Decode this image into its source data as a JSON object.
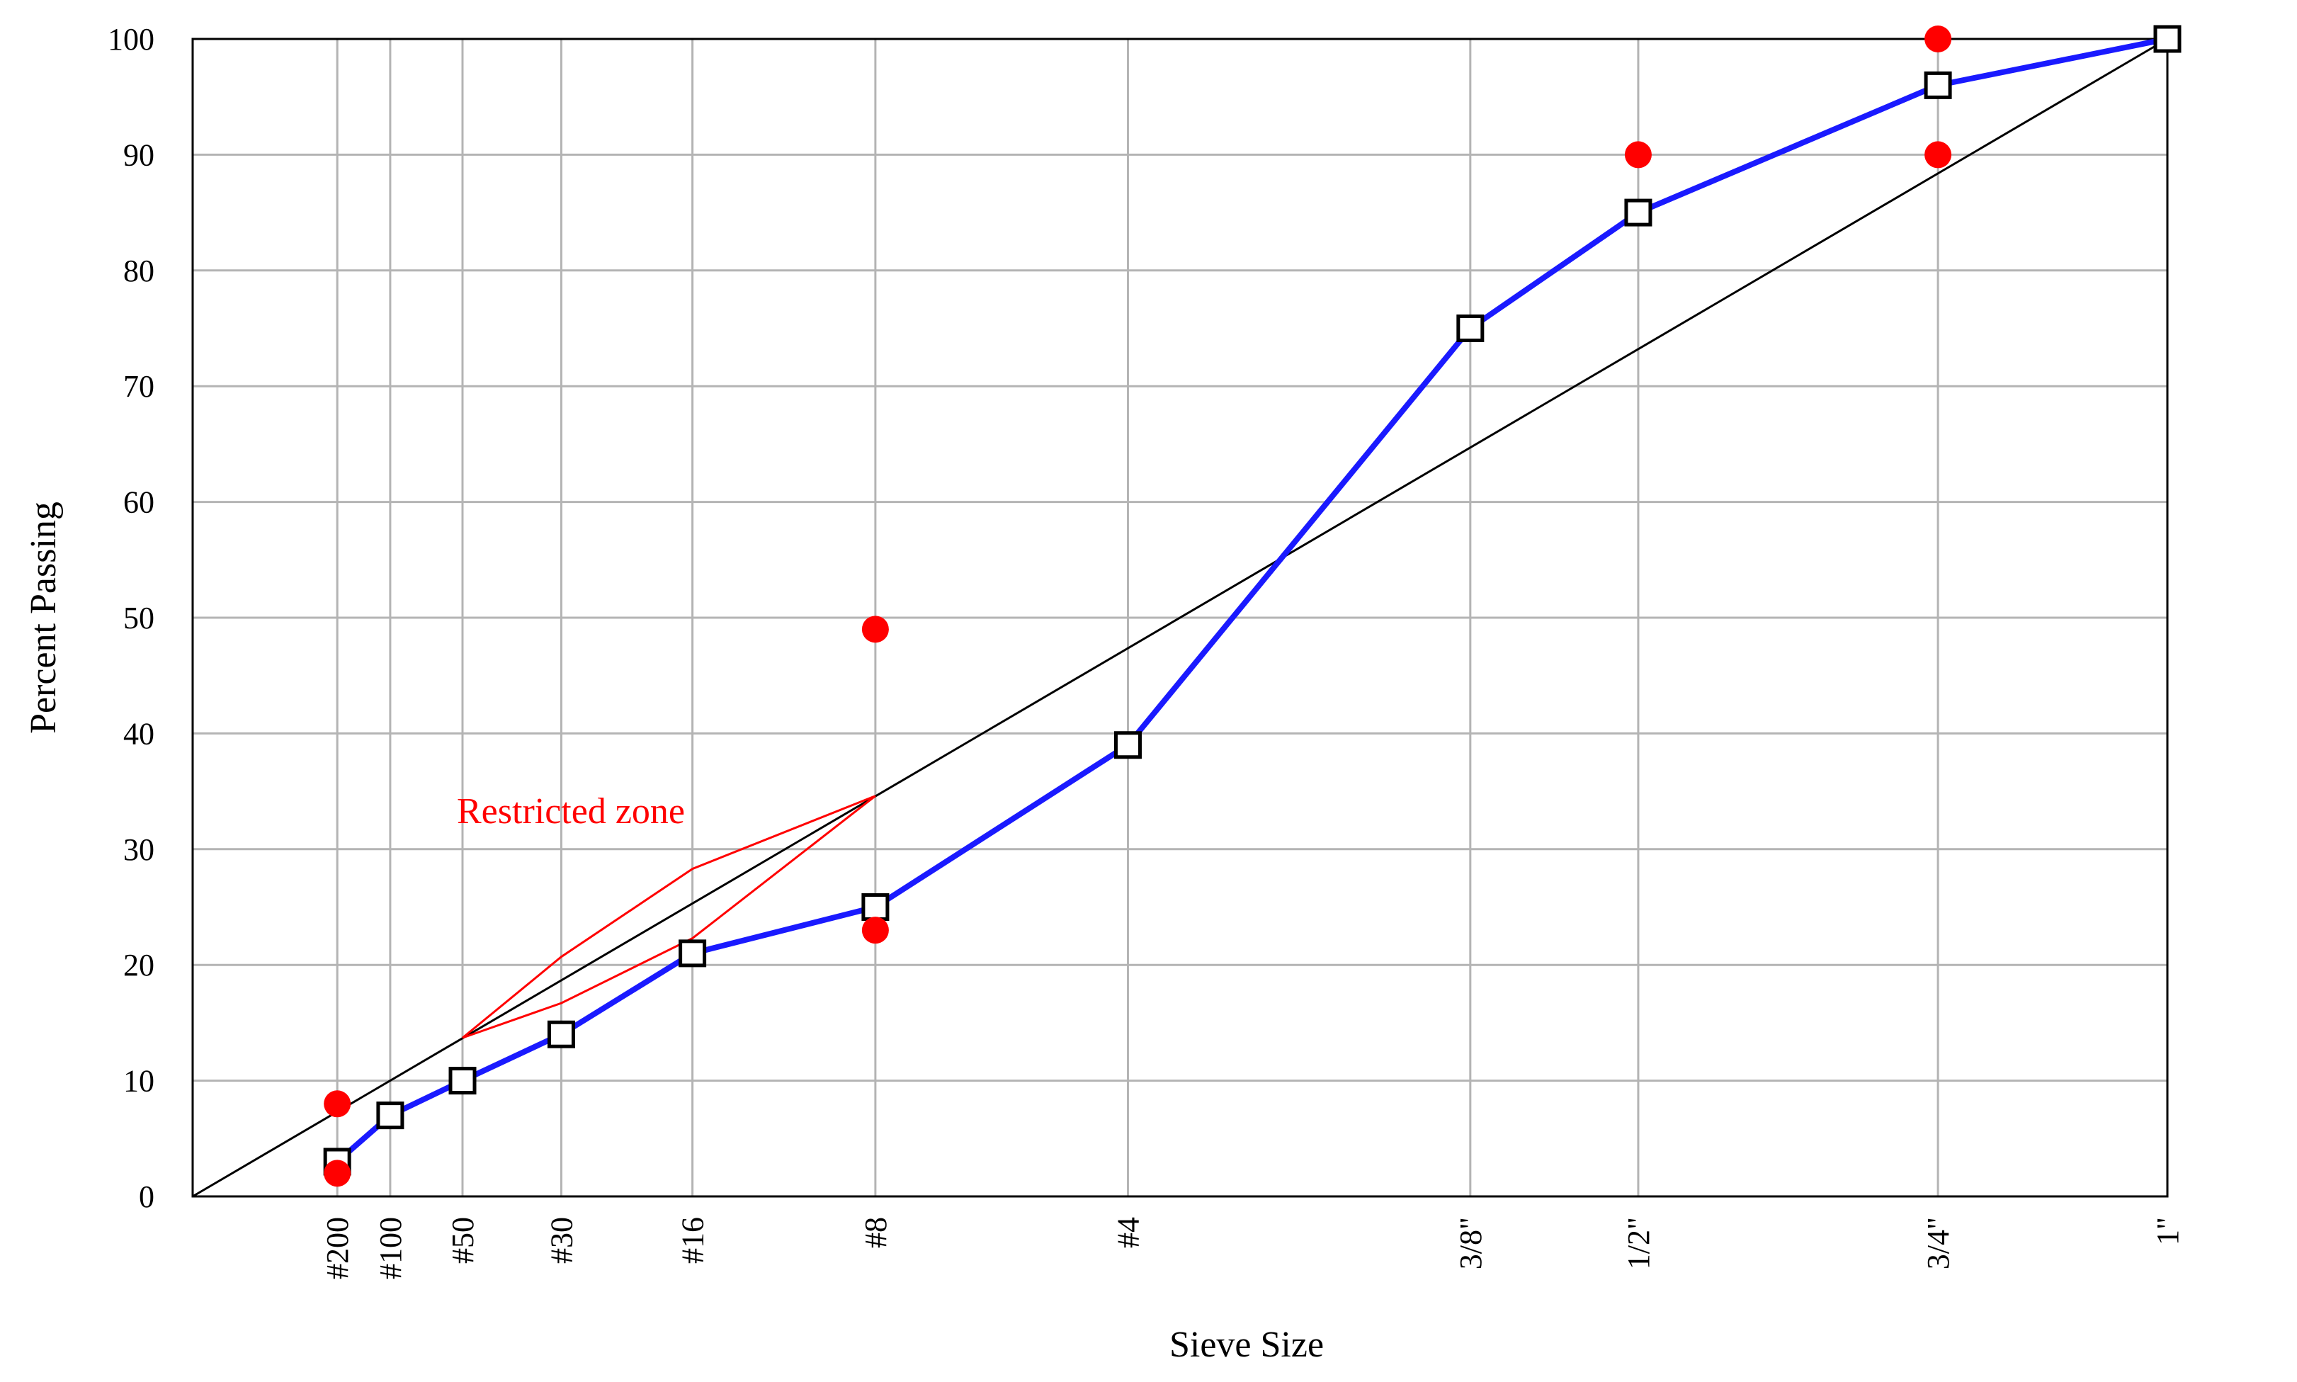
{
  "chart_data": {
    "type": "line",
    "xlabel": "Sieve Size",
    "ylabel": "Percent Passing",
    "ylim": [
      0,
      100
    ],
    "yticks": [
      0,
      10,
      20,
      30,
      40,
      50,
      60,
      70,
      80,
      90,
      100
    ],
    "grid": true,
    "sieves": [
      "#200",
      "#100",
      "#50",
      "#30",
      "#16",
      "#8",
      "#4",
      "3/8\"",
      "1/2\"",
      "3/4\"",
      "1\""
    ],
    "sieve_sizes_mm": [
      0.075,
      0.15,
      0.3,
      0.6,
      1.18,
      2.36,
      4.75,
      9.5,
      12.5,
      19.0,
      25.0
    ],
    "x_scale": "power-0.45",
    "series": [
      {
        "x": [
          "#200",
          "#100",
          "#50",
          "#30",
          "#16",
          "#8",
          "#4",
          "3/8\"",
          "1/2\"",
          "3/4\"",
          "1\""
        ],
        "y": [
          3,
          7,
          10,
          14,
          21,
          25,
          39,
          75,
          85,
          96,
          100
        ],
        "color": "#1a1aff",
        "marker": "open-square"
      }
    ],
    "maximum_density_line": {
      "x": [
        0,
        25.0
      ],
      "y": [
        0,
        100
      ],
      "color": "#000000"
    },
    "control_points": {
      "color": "#ff0000",
      "points": [
        {
          "sieve": "#200",
          "y": 8
        },
        {
          "sieve": "#200",
          "y": 2
        },
        {
          "sieve": "#8",
          "y": 49
        },
        {
          "sieve": "#8",
          "y": 23
        },
        {
          "sieve": "1/2\"",
          "y": 90
        },
        {
          "sieve": "3/4\"",
          "y": 100
        },
        {
          "sieve": "3/4\"",
          "y": 90
        }
      ]
    },
    "restricted_zone": {
      "label": "Restricted zone",
      "color": "#ff0000",
      "upper": [
        {
          "sieve": "#50",
          "y": 13.7
        },
        {
          "sieve": "#30",
          "y": 20.7
        },
        {
          "sieve": "#16",
          "y": 28.3
        },
        {
          "sieve": "#8",
          "y": 34.6
        }
      ],
      "lower": [
        {
          "sieve": "#50",
          "y": 13.7
        },
        {
          "sieve": "#30",
          "y": 16.7
        },
        {
          "sieve": "#16",
          "y": 22.3
        },
        {
          "sieve": "#8",
          "y": 34.6
        }
      ]
    }
  }
}
